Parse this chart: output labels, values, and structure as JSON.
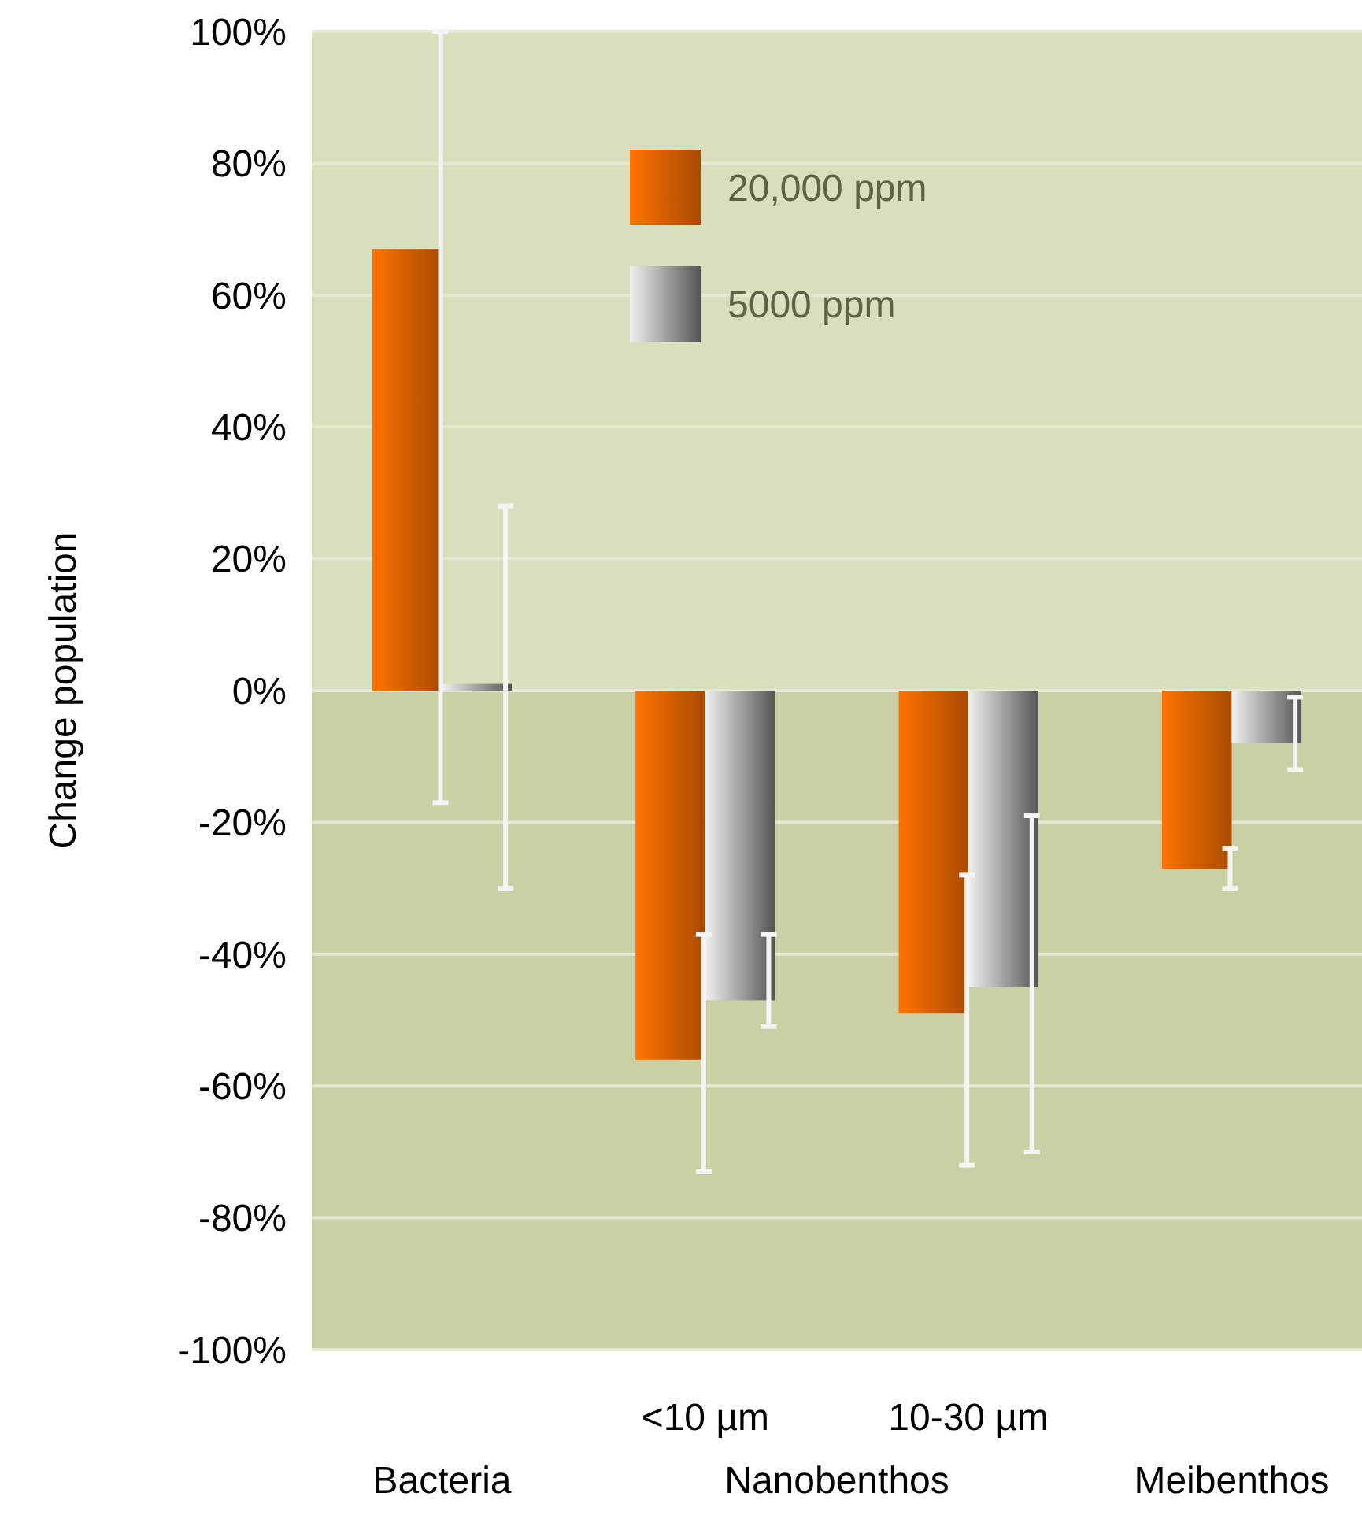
{
  "chart_data": {
    "type": "bar",
    "ylabel": "Change population",
    "categories": [
      "Bacteria",
      "<10 µm",
      "10-30 µm",
      "Meibenthos"
    ],
    "annotations": [
      "Nanobenthos"
    ],
    "ylim": [
      -100,
      100
    ],
    "yticks": [
      {
        "value": -100,
        "label": "-100%"
      },
      {
        "value": -80,
        "label": "-80%"
      },
      {
        "value": -60,
        "label": "-60%"
      },
      {
        "value": -40,
        "label": "-40%"
      },
      {
        "value": -20,
        "label": "-20%"
      },
      {
        "value": 0,
        "label": "0%"
      },
      {
        "value": 20,
        "label": "20%"
      },
      {
        "value": 40,
        "label": "40%"
      },
      {
        "value": 60,
        "label": "60%"
      },
      {
        "value": 80,
        "label": "80%"
      },
      {
        "value": 100,
        "label": "100%"
      }
    ],
    "grid": "y",
    "legend": "top",
    "bands": [
      {
        "axis": "y",
        "from": 0,
        "to": 100,
        "color": "#d9dfbd"
      },
      {
        "axis": "y",
        "from": -100,
        "to": 0,
        "color": "#c9d0a4"
      }
    ],
    "series": [
      {
        "name": "20,000 ppm",
        "color": "#e06400",
        "values": [
          67,
          -56,
          -49,
          -27
        ],
        "errors": [
          [
            -17,
            100
          ],
          [
            -73,
            -37
          ],
          [
            -72,
            -28
          ],
          [
            -30,
            -24
          ]
        ]
      },
      {
        "name": "5000 ppm",
        "color": "#a6a6a6",
        "values": [
          1,
          -47,
          -45,
          -8
        ],
        "errors": [
          [
            -30,
            28
          ],
          [
            -51,
            -37
          ],
          [
            -70,
            -19
          ],
          [
            -12,
            -1
          ]
        ]
      }
    ]
  }
}
